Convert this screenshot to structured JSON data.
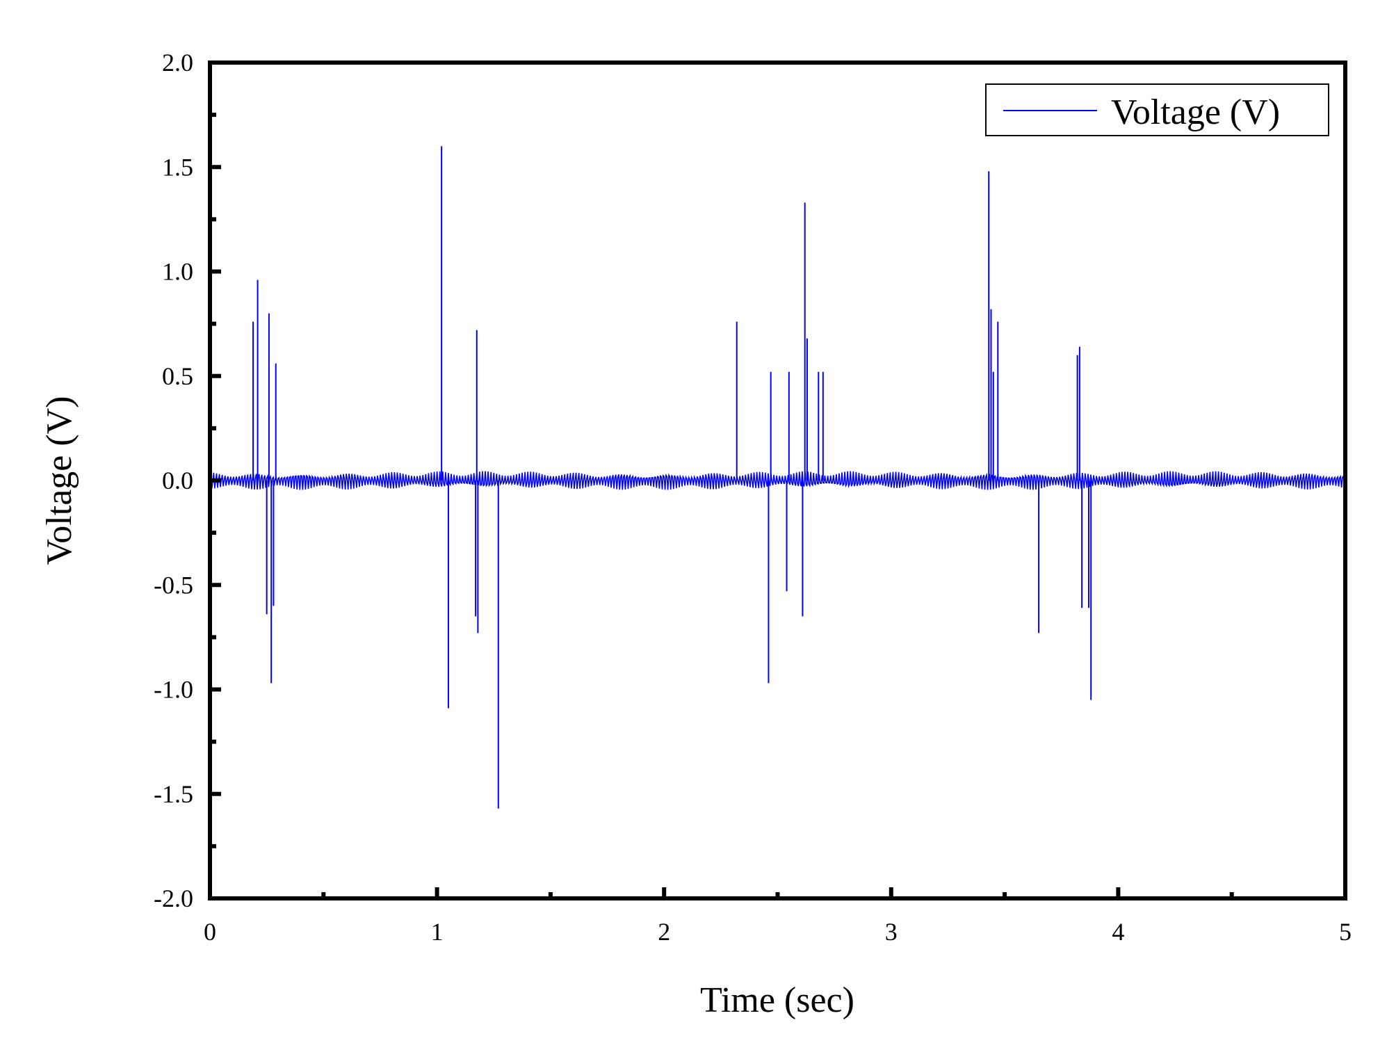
{
  "chart_data": {
    "type": "line",
    "xlabel": "Time (sec)",
    "ylabel": "Voltage (V)",
    "xlim": [
      0,
      5
    ],
    "ylim": [
      -2.0,
      2.0
    ],
    "x_ticks": [
      0,
      1,
      2,
      3,
      4,
      5
    ],
    "x_tick_labels": [
      "0",
      "1",
      "2",
      "3",
      "4",
      "5"
    ],
    "x_minor_ticks": [
      0.5,
      1.5,
      2.5,
      3.5,
      4.5
    ],
    "y_ticks": [
      -2.0,
      -1.5,
      -1.0,
      -0.5,
      0.0,
      0.5,
      1.0,
      1.5,
      2.0
    ],
    "y_tick_labels": [
      "-2.0",
      "-1.5",
      "-1.0",
      "-0.5",
      "0.0",
      "0.5",
      "1.0",
      "1.5",
      "2.0"
    ],
    "y_minor_ticks": [
      -1.75,
      -1.25,
      -0.75,
      -0.25,
      0.25,
      0.75,
      1.25,
      1.75
    ],
    "grid": false,
    "legend_position": "top-right",
    "series": [
      {
        "name": "Voltage (V)",
        "color": "#0000ff",
        "baseline_amplitude": 0.045,
        "spikes": [
          {
            "x": 0.19,
            "y": 0.76
          },
          {
            "x": 0.21,
            "y": 0.96
          },
          {
            "x": 0.25,
            "y": -0.64
          },
          {
            "x": 0.26,
            "y": 0.8
          },
          {
            "x": 0.27,
            "y": -0.97
          },
          {
            "x": 0.28,
            "y": -0.6
          },
          {
            "x": 0.29,
            "y": 0.56
          },
          {
            "x": 1.02,
            "y": 1.6
          },
          {
            "x": 1.05,
            "y": -1.09
          },
          {
            "x": 1.17,
            "y": -0.65
          },
          {
            "x": 1.175,
            "y": 0.72
          },
          {
            "x": 1.18,
            "y": -0.73
          },
          {
            "x": 1.27,
            "y": -1.57
          },
          {
            "x": 2.32,
            "y": 0.76
          },
          {
            "x": 2.46,
            "y": -0.97
          },
          {
            "x": 2.47,
            "y": 0.52
          },
          {
            "x": 2.54,
            "y": -0.53
          },
          {
            "x": 2.55,
            "y": 0.52
          },
          {
            "x": 2.61,
            "y": -0.65
          },
          {
            "x": 2.62,
            "y": 1.33
          },
          {
            "x": 2.63,
            "y": 0.68
          },
          {
            "x": 2.68,
            "y": 0.52
          },
          {
            "x": 2.7,
            "y": 0.52
          },
          {
            "x": 3.43,
            "y": 1.48
          },
          {
            "x": 3.44,
            "y": 0.82
          },
          {
            "x": 3.45,
            "y": 0.52
          },
          {
            "x": 3.47,
            "y": 0.76
          },
          {
            "x": 3.65,
            "y": -0.73
          },
          {
            "x": 3.82,
            "y": 0.6
          },
          {
            "x": 3.83,
            "y": 0.64
          },
          {
            "x": 3.84,
            "y": -0.61
          },
          {
            "x": 3.87,
            "y": -0.61
          },
          {
            "x": 3.88,
            "y": -1.05
          }
        ]
      }
    ]
  }
}
